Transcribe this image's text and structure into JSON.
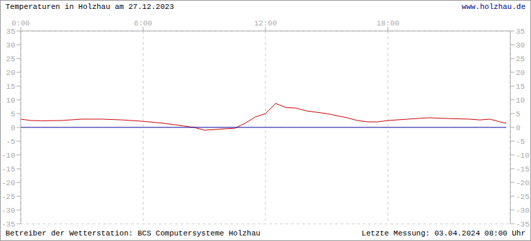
{
  "chart_data": {
    "type": "line",
    "title": "Temperaturen in Holzhau am 27.12.2023",
    "subtitle": "www.holzhau.de",
    "annotations": [
      "Betreiber der Wetterstation: BCS Computersysteme Holzhau",
      "Letzte Messung: 03.04.2024 08:00 Uhr"
    ],
    "x": [
      0,
      0.5,
      1,
      2,
      3,
      4,
      5,
      6,
      7,
      8,
      8.5,
      9,
      9.5,
      10,
      10.5,
      11,
      11.5,
      12,
      12.5,
      13,
      13.5,
      14,
      15,
      16,
      16.5,
      17,
      17.5,
      18,
      19,
      20,
      21,
      22,
      22.5,
      23,
      23.5,
      23.8
    ],
    "series": [
      {
        "color": "#cc0000",
        "values": [
          3.0,
          2.5,
          2.4,
          2.5,
          3.0,
          3.0,
          2.7,
          2.2,
          1.5,
          0.5,
          0,
          -1.0,
          -0.8,
          -0.5,
          -0.3,
          1.5,
          3.8,
          5.0,
          8.7,
          7.2,
          7.0,
          6.0,
          5.0,
          3.5,
          2.5,
          2.0,
          2.0,
          2.5,
          3.0,
          3.5,
          3.2,
          3.0,
          2.7,
          3.0,
          2.0,
          1.5
        ]
      },
      {
        "color": "#000099",
        "values": [
          0,
          0,
          0,
          0,
          0,
          0,
          0,
          0,
          0,
          0,
          0,
          0,
          0,
          0,
          0,
          0,
          0,
          0,
          0,
          0,
          0,
          0,
          0,
          0,
          0,
          0,
          0,
          0,
          0,
          0,
          0,
          0,
          0,
          0,
          0,
          0
        ]
      }
    ],
    "xlim": [
      0,
      24
    ],
    "xticks": [
      {
        "value": 0,
        "label": "0:00"
      },
      {
        "value": 6,
        "label": "6:00"
      },
      {
        "value": 12,
        "label": "12:00"
      },
      {
        "value": 18,
        "label": "18:00"
      }
    ],
    "ylim": [
      -35,
      35
    ],
    "yticks": [
      -35,
      -30,
      -25,
      -20,
      -15,
      -10,
      -5,
      0,
      5,
      10,
      15,
      20,
      25,
      30,
      35
    ],
    "grid": true
  }
}
